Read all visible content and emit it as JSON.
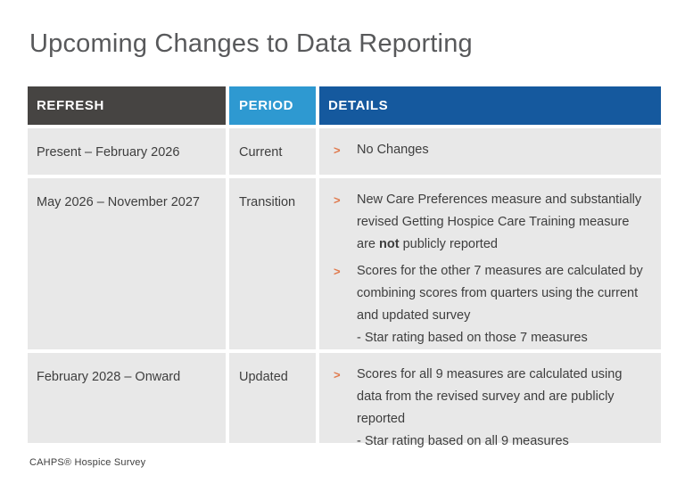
{
  "slide": {
    "title": "Upcoming Changes to Data Reporting",
    "footer": "CAHPS® Hospice Survey"
  },
  "colors": {
    "header_refresh_bg": "#464442",
    "header_period_bg": "#2e99d1",
    "header_details_bg": "#15599e",
    "row_bg": "#e8e8e8",
    "bullet_arrow": "#e0794c",
    "body_text": "#3e3e3e",
    "title_text": "#58595b"
  },
  "table": {
    "bullet_glyph": ">",
    "headers": {
      "refresh": "REFRESH",
      "period": "PERIOD",
      "details": "DETAILS"
    },
    "rows": [
      {
        "refresh": "Present – February 2026",
        "period": "Current",
        "bullets": [
          {
            "text": "No Changes"
          }
        ]
      },
      {
        "refresh": "May 2026 – November 2027",
        "period": "Transition",
        "bullets": [
          {
            "pre": "New Care Preferences measure and substantially revised Getting Hospice Care Training measure are ",
            "bold": "not",
            "post": " publicly reported"
          },
          {
            "text": "Scores for the other 7 measures are calculated by combining scores from quarters using the current and updated survey",
            "sub": "- Star rating based on those 7 measures"
          }
        ]
      },
      {
        "refresh": "February 2028 – Onward",
        "period": "Updated",
        "bullets": [
          {
            "text": "Scores for all 9 measures are calculated using data from the revised survey and are publicly reported",
            "sub": "- Star rating based on all 9 measures"
          }
        ]
      }
    ]
  }
}
